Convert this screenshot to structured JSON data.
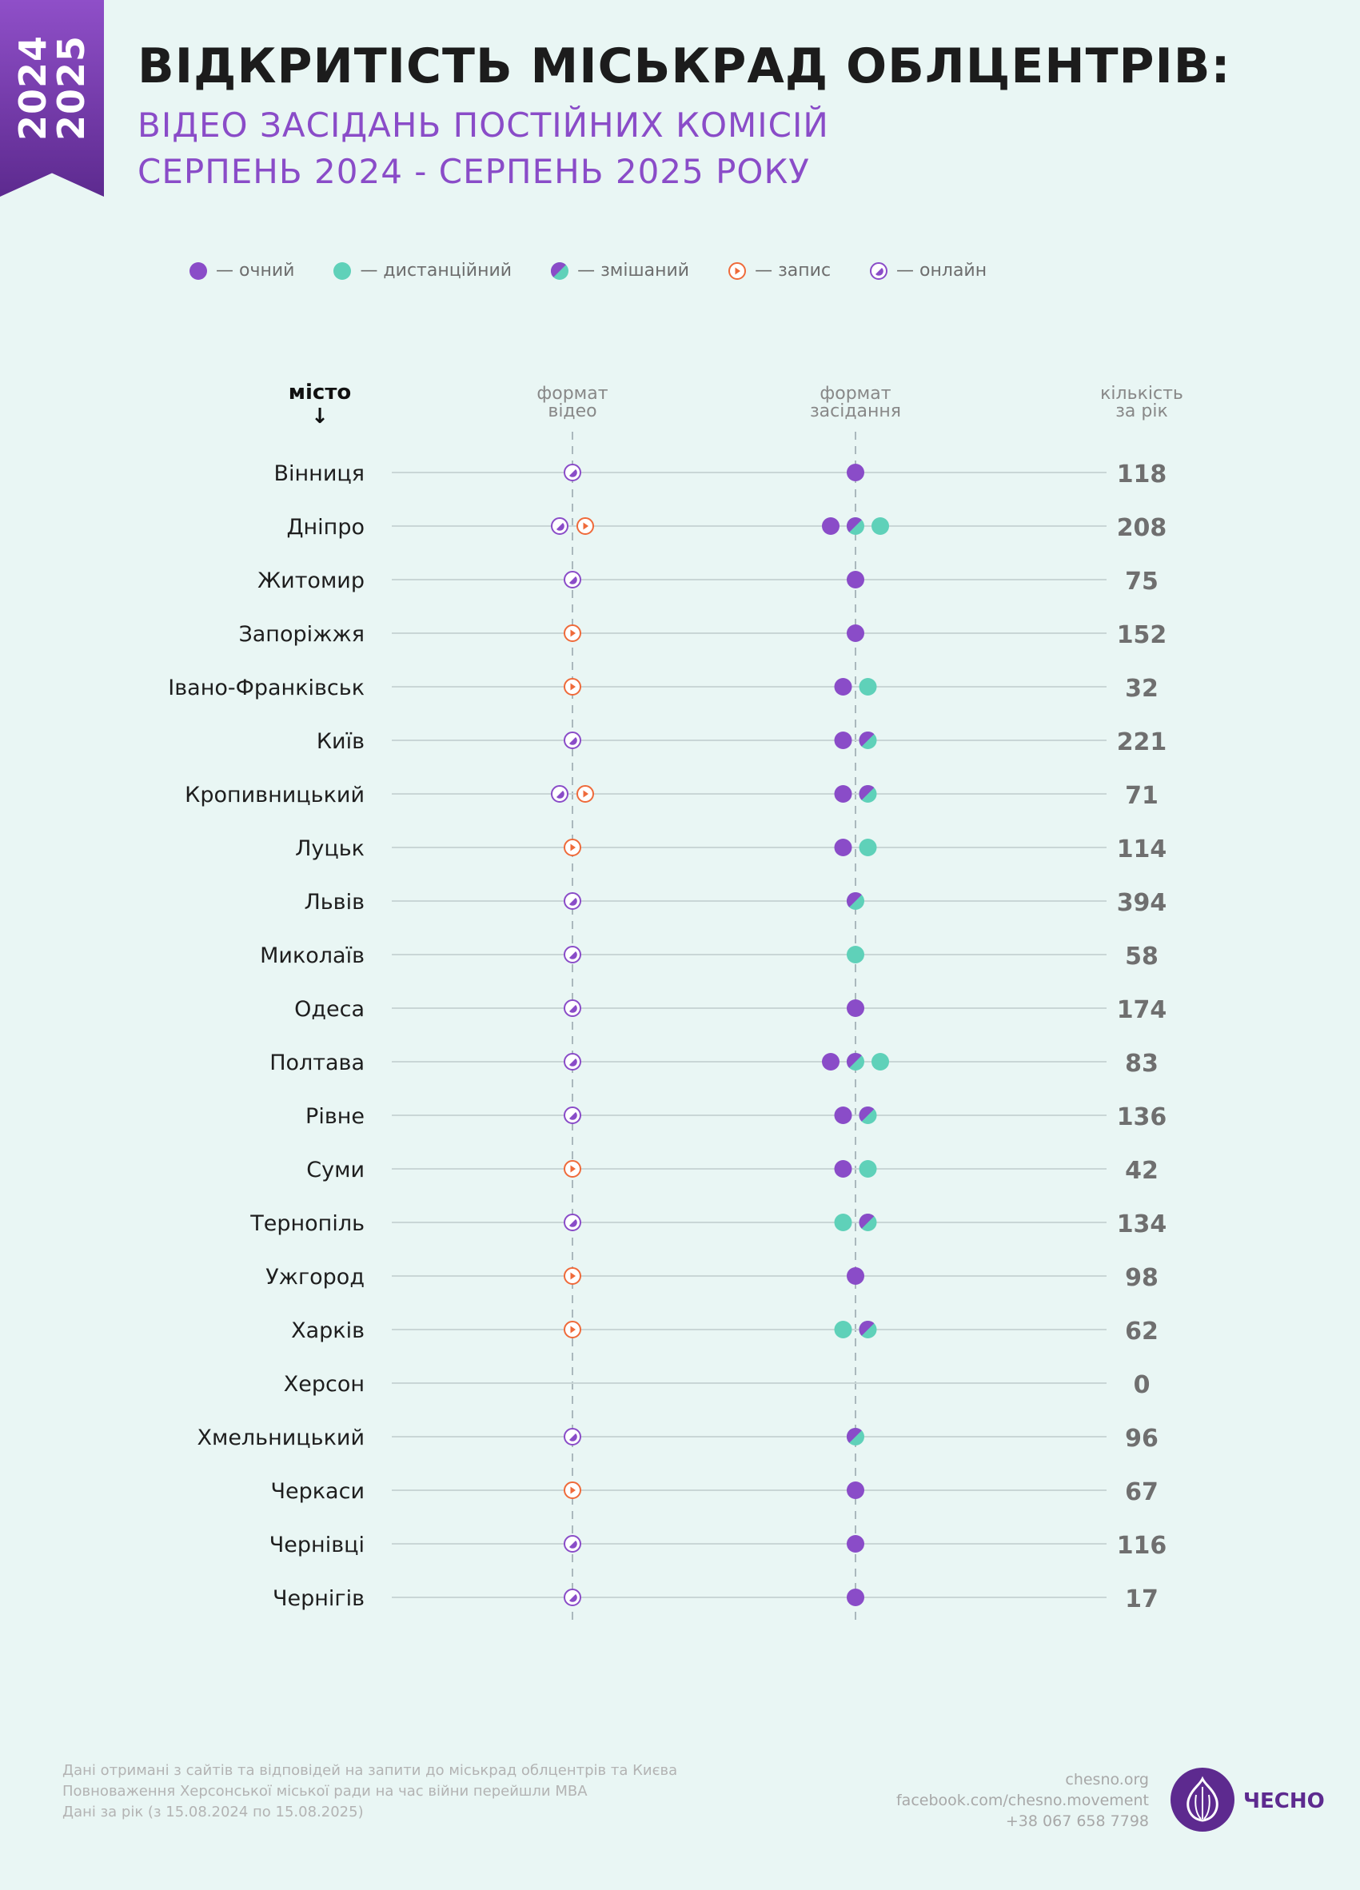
{
  "badge": {
    "year1": "2024",
    "year2": "2025"
  },
  "header": {
    "title": "ВІДКРИТІСТЬ МІСЬКРАД ОБЛЦЕНТРІВ:",
    "subtitle1": "ВІДЕО ЗАСІДАНЬ ПОСТІЙНИХ КОМІСІЙ",
    "subtitle2": "СЕРПЕНЬ 2024 - СЕРПЕНЬ 2025 РОКУ"
  },
  "legend": [
    {
      "key": "ochnyi",
      "label": "— очний"
    },
    {
      "key": "dystantsiinyi",
      "label": "— дистанційний"
    },
    {
      "key": "zmishanyi",
      "label": "— змішаний"
    },
    {
      "key": "zapys",
      "label": "— запис"
    },
    {
      "key": "onlain",
      "label": "— онлайн"
    }
  ],
  "columns": {
    "city": "місто",
    "city_arrow": "↓",
    "video_line1": "формат",
    "video_line2": "відео",
    "meeting_line1": "формат",
    "meeting_line2": "засідання",
    "count_line1": "кількість",
    "count_line2": "за рік"
  },
  "colors": {
    "purple": "#8a4cc8",
    "teal": "#5fd1b9",
    "orange": "#ef6a3a",
    "line": "#c9d6d6",
    "count": "#6f6f6f"
  },
  "chart_data": {
    "type": "table",
    "title": "ВІДКРИТІСТЬ МІСЬКРАД ОБЛЦЕНТРІВ: ВІДЕО ЗАСІДАНЬ ПОСТІЙНИХ КОМІСІЙ",
    "rows": [
      {
        "city": "Вінниця",
        "video": [
          "onlain"
        ],
        "meeting": [
          "ochnyi"
        ],
        "count": 118
      },
      {
        "city": "Дніпро",
        "video": [
          "onlain",
          "zapys"
        ],
        "meeting": [
          "ochnyi",
          "zmishanyi",
          "dystantsiinyi"
        ],
        "count": 208
      },
      {
        "city": "Житомир",
        "video": [
          "onlain"
        ],
        "meeting": [
          "ochnyi"
        ],
        "count": 75
      },
      {
        "city": "Запоріжжя",
        "video": [
          "zapys"
        ],
        "meeting": [
          "ochnyi"
        ],
        "count": 152
      },
      {
        "city": "Івано-Франківськ",
        "video": [
          "zapys"
        ],
        "meeting": [
          "ochnyi",
          "dystantsiinyi"
        ],
        "count": 32
      },
      {
        "city": "Київ",
        "video": [
          "onlain"
        ],
        "meeting": [
          "ochnyi",
          "zmishanyi"
        ],
        "count": 221
      },
      {
        "city": "Кропивницький",
        "video": [
          "onlain",
          "zapys"
        ],
        "meeting": [
          "ochnyi",
          "zmishanyi"
        ],
        "count": 71
      },
      {
        "city": "Луцьк",
        "video": [
          "zapys"
        ],
        "meeting": [
          "ochnyi",
          "dystantsiinyi"
        ],
        "count": 114
      },
      {
        "city": "Львів",
        "video": [
          "onlain"
        ],
        "meeting": [
          "zmishanyi"
        ],
        "count": 394
      },
      {
        "city": "Миколаїв",
        "video": [
          "onlain"
        ],
        "meeting": [
          "dystantsiinyi"
        ],
        "count": 58
      },
      {
        "city": "Одеса",
        "video": [
          "onlain"
        ],
        "meeting": [
          "ochnyi"
        ],
        "count": 174
      },
      {
        "city": "Полтава",
        "video": [
          "onlain"
        ],
        "meeting": [
          "ochnyi",
          "zmishanyi",
          "dystantsiinyi"
        ],
        "count": 83
      },
      {
        "city": "Рівне",
        "video": [
          "onlain"
        ],
        "meeting": [
          "ochnyi",
          "zmishanyi"
        ],
        "count": 136
      },
      {
        "city": "Суми",
        "video": [
          "zapys"
        ],
        "meeting": [
          "ochnyi",
          "dystantsiinyi"
        ],
        "count": 42
      },
      {
        "city": "Тернопіль",
        "video": [
          "onlain"
        ],
        "meeting": [
          "dystantsiinyi",
          "zmishanyi"
        ],
        "count": 134
      },
      {
        "city": "Ужгород",
        "video": [
          "zapys"
        ],
        "meeting": [
          "ochnyi"
        ],
        "count": 98
      },
      {
        "city": "Харків",
        "video": [
          "zapys"
        ],
        "meeting": [
          "dystantsiinyi",
          "zmishanyi"
        ],
        "count": 62
      },
      {
        "city": "Херсон",
        "video": [],
        "meeting": [],
        "count": 0
      },
      {
        "city": "Хмельницький",
        "video": [
          "onlain"
        ],
        "meeting": [
          "zmishanyi"
        ],
        "count": 96
      },
      {
        "city": "Черкаси",
        "video": [
          "zapys"
        ],
        "meeting": [
          "ochnyi"
        ],
        "count": 67
      },
      {
        "city": "Чернівці",
        "video": [
          "onlain"
        ],
        "meeting": [
          "ochnyi"
        ],
        "count": 116
      },
      {
        "city": "Чернігів",
        "video": [
          "onlain"
        ],
        "meeting": [
          "ochnyi"
        ],
        "count": 17
      }
    ]
  },
  "footer": {
    "note1": "Дані отримані з сайтів та відповідей на запити до міськрад облцентрів та Києва",
    "note2": "Повноваження Херсонської міської ради на час війни перейшли МВА",
    "note3": "Дані за рік (з 15.08.2024 по 15.08.2025)",
    "site": "chesno.org",
    "facebook": "facebook.com/chesno.movement",
    "phone": "+38 067 658 7798",
    "logo": "ЧЕСНО"
  }
}
